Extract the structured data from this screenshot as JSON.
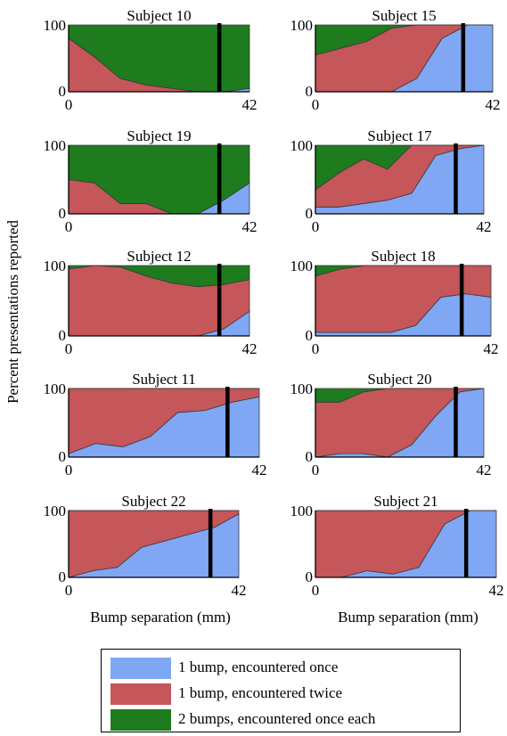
{
  "figure": {
    "ylabel": "Percent presentations reported",
    "xlabel": "Bump separation (mm)",
    "colors": {
      "once": "#7fa7f4",
      "twice": "#c5565a",
      "two": "#1e7b1e",
      "marker": "#000000"
    }
  },
  "legend": {
    "items": [
      {
        "key": "once",
        "label": "1 bump, encountered once"
      },
      {
        "key": "twice",
        "label": "1 bump, encountered twice"
      },
      {
        "key": "two",
        "label": "2 bumps, encountered once each"
      }
    ]
  },
  "chart_data": [
    {
      "type": "area",
      "title": "Subject 10",
      "x": [
        0,
        6,
        12,
        18,
        24,
        30,
        36,
        42
      ],
      "ylim": [
        0,
        100
      ],
      "xlim": [
        0,
        42
      ],
      "x_ticks": [
        "0",
        "42"
      ],
      "y_ticks": [
        "0",
        "100"
      ],
      "vline": 35,
      "series": [
        {
          "name": "1 bump, encountered once",
          "values": [
            0,
            0,
            0,
            0,
            0,
            0,
            0,
            5
          ]
        },
        {
          "name": "1 bump, encountered twice",
          "values": [
            80,
            52,
            20,
            10,
            5,
            0,
            0,
            0
          ]
        },
        {
          "name": "2 bumps, encountered once each",
          "values": [
            20,
            48,
            80,
            90,
            95,
            100,
            100,
            95
          ]
        }
      ]
    },
    {
      "type": "area",
      "title": "Subject 15",
      "x": [
        0,
        6,
        12,
        18,
        24,
        30,
        36,
        42
      ],
      "ylim": [
        0,
        100
      ],
      "xlim": [
        0,
        42
      ],
      "x_ticks": [
        "0",
        "42"
      ],
      "y_ticks": [
        "0",
        "100"
      ],
      "vline": 35,
      "series": [
        {
          "name": "1 bump, encountered once",
          "values": [
            0,
            0,
            0,
            0,
            20,
            80,
            100,
            100
          ]
        },
        {
          "name": "1 bump, encountered twice",
          "values": [
            55,
            65,
            75,
            95,
            80,
            20,
            0,
            0
          ]
        },
        {
          "name": "2 bumps, encountered once each",
          "values": [
            45,
            35,
            25,
            5,
            0,
            0,
            0,
            0
          ]
        }
      ]
    },
    {
      "type": "area",
      "title": "Subject 19",
      "x": [
        0,
        6,
        12,
        18,
        24,
        30,
        36,
        42
      ],
      "ylim": [
        0,
        100
      ],
      "xlim": [
        0,
        42
      ],
      "x_ticks": [
        "0",
        "42"
      ],
      "y_ticks": [
        "0",
        "100"
      ],
      "vline": 35,
      "series": [
        {
          "name": "1 bump, encountered once",
          "values": [
            0,
            0,
            0,
            0,
            0,
            0,
            20,
            45
          ]
        },
        {
          "name": "1 bump, encountered twice",
          "values": [
            50,
            45,
            15,
            15,
            0,
            0,
            0,
            0
          ]
        },
        {
          "name": "2 bumps, encountered once each",
          "values": [
            50,
            55,
            85,
            85,
            100,
            100,
            80,
            55
          ]
        }
      ]
    },
    {
      "type": "area",
      "title": "Subject 17",
      "x": [
        0,
        6,
        12,
        18,
        24,
        30,
        36,
        42
      ],
      "ylim": [
        0,
        100
      ],
      "xlim": [
        0,
        42
      ],
      "x_ticks": [
        "0",
        "42"
      ],
      "y_ticks": [
        "0",
        "100"
      ],
      "vline": 35,
      "series": [
        {
          "name": "1 bump, encountered once",
          "values": [
            10,
            10,
            15,
            20,
            30,
            85,
            95,
            100
          ]
        },
        {
          "name": "1 bump, encountered twice",
          "values": [
            25,
            50,
            65,
            45,
            70,
            15,
            5,
            0
          ]
        },
        {
          "name": "2 bumps, encountered once each",
          "values": [
            65,
            40,
            20,
            35,
            0,
            0,
            0,
            0
          ]
        }
      ]
    },
    {
      "type": "area",
      "title": "Subject 12",
      "x": [
        0,
        6,
        12,
        18,
        24,
        30,
        36,
        42
      ],
      "ylim": [
        0,
        100
      ],
      "xlim": [
        0,
        42
      ],
      "x_ticks": [
        "0",
        "42"
      ],
      "y_ticks": [
        "0",
        "100"
      ],
      "vline": 35,
      "series": [
        {
          "name": "1 bump, encountered once",
          "values": [
            0,
            0,
            0,
            0,
            0,
            0,
            10,
            35
          ]
        },
        {
          "name": "1 bump, encountered twice",
          "values": [
            95,
            100,
            98,
            85,
            75,
            70,
            63,
            45
          ]
        },
        {
          "name": "2 bumps, encountered once each",
          "values": [
            5,
            0,
            2,
            15,
            25,
            30,
            27,
            20
          ]
        }
      ]
    },
    {
      "type": "area",
      "title": "Subject 18",
      "x": [
        0,
        6,
        12,
        18,
        24,
        30,
        36,
        42
      ],
      "ylim": [
        0,
        100
      ],
      "xlim": [
        0,
        42
      ],
      "x_ticks": [
        "0",
        "42"
      ],
      "y_ticks": [
        "0",
        "100"
      ],
      "vline": 35,
      "series": [
        {
          "name": "1 bump, encountered once",
          "values": [
            5,
            5,
            5,
            5,
            15,
            55,
            60,
            55
          ]
        },
        {
          "name": "1 bump, encountered twice",
          "values": [
            80,
            90,
            95,
            95,
            85,
            45,
            40,
            45
          ]
        },
        {
          "name": "2 bumps, encountered once each",
          "values": [
            15,
            5,
            0,
            0,
            0,
            0,
            0,
            0
          ]
        }
      ]
    },
    {
      "type": "area",
      "title": "Subject 11",
      "x": [
        0,
        6,
        12,
        18,
        24,
        30,
        36,
        42
      ],
      "ylim": [
        0,
        100
      ],
      "xlim": [
        0,
        42
      ],
      "x_ticks": [
        "0",
        "42"
      ],
      "y_ticks": [
        "0",
        "100"
      ],
      "vline": 35,
      "series": [
        {
          "name": "1 bump, encountered once",
          "values": [
            5,
            20,
            15,
            30,
            65,
            68,
            80,
            88
          ]
        },
        {
          "name": "1 bump, encountered twice",
          "values": [
            95,
            80,
            85,
            70,
            35,
            32,
            20,
            12
          ]
        },
        {
          "name": "2 bumps, encountered once each",
          "values": [
            0,
            0,
            0,
            0,
            0,
            0,
            0,
            0
          ]
        }
      ]
    },
    {
      "type": "area",
      "title": "Subject 20",
      "x": [
        0,
        6,
        12,
        18,
        24,
        30,
        36,
        42
      ],
      "ylim": [
        0,
        100
      ],
      "xlim": [
        0,
        42
      ],
      "x_ticks": [
        "0",
        "42"
      ],
      "y_ticks": [
        "0",
        "100"
      ],
      "vline": 35,
      "series": [
        {
          "name": "1 bump, encountered once",
          "values": [
            0,
            5,
            5,
            0,
            18,
            60,
            95,
            100
          ]
        },
        {
          "name": "1 bump, encountered twice",
          "values": [
            80,
            75,
            90,
            100,
            82,
            40,
            5,
            0
          ]
        },
        {
          "name": "2 bumps, encountered once each",
          "values": [
            20,
            20,
            5,
            0,
            0,
            0,
            0,
            0
          ]
        }
      ]
    },
    {
      "type": "area",
      "title": "Subject 22",
      "x": [
        0,
        6,
        12,
        18,
        24,
        30,
        36,
        42
      ],
      "ylim": [
        0,
        100
      ],
      "xlim": [
        0,
        42
      ],
      "x_ticks": [
        "0",
        "42"
      ],
      "y_ticks": [
        "0",
        "100"
      ],
      "vline": 35,
      "series": [
        {
          "name": "1 bump, encountered once",
          "values": [
            0,
            10,
            15,
            45,
            55,
            65,
            75,
            95
          ]
        },
        {
          "name": "1 bump, encountered twice",
          "values": [
            100,
            90,
            85,
            55,
            45,
            35,
            25,
            5
          ]
        },
        {
          "name": "2 bumps, encountered once each",
          "values": [
            0,
            0,
            0,
            0,
            0,
            0,
            0,
            0
          ]
        }
      ]
    },
    {
      "type": "area",
      "title": "Subject 21",
      "x": [
        0,
        6,
        12,
        18,
        24,
        30,
        36,
        42
      ],
      "ylim": [
        0,
        100
      ],
      "xlim": [
        0,
        42
      ],
      "x_ticks": [
        "0",
        "42"
      ],
      "y_ticks": [
        "0",
        "100"
      ],
      "vline": 35,
      "series": [
        {
          "name": "1 bump, encountered once",
          "values": [
            0,
            0,
            10,
            5,
            15,
            80,
            100,
            100
          ]
        },
        {
          "name": "1 bump, encountered twice",
          "values": [
            100,
            100,
            90,
            95,
            85,
            20,
            0,
            0
          ]
        },
        {
          "name": "2 bumps, encountered once each",
          "values": [
            0,
            0,
            0,
            0,
            0,
            0,
            0,
            0
          ]
        }
      ]
    }
  ]
}
